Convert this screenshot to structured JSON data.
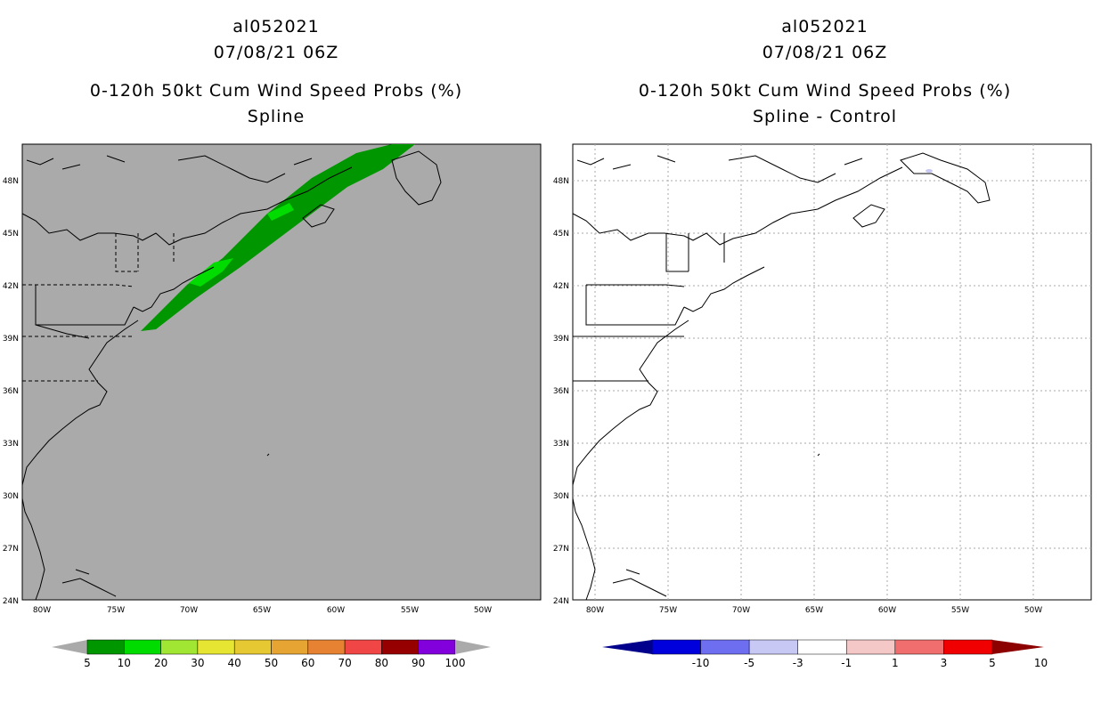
{
  "panels": [
    {
      "id": "left",
      "storm": "al052021",
      "datetime": "07/08/21 06Z",
      "product": "0-120h 50kt Cum Wind Speed Probs (%)",
      "subtitle": "Spline",
      "background": "#aaaaaa",
      "colorbar": {
        "labels": [
          "5",
          "10",
          "20",
          "30",
          "40",
          "50",
          "60",
          "70",
          "80",
          "90",
          "100"
        ],
        "colors": [
          "#009600",
          "#00dc00",
          "#a0e632",
          "#e6e632",
          "#e6c832",
          "#e6a532",
          "#e68232",
          "#f04646",
          "#960000",
          "#8200dc"
        ],
        "end_color": "#aaaaaa"
      }
    },
    {
      "id": "right",
      "storm": "al052021",
      "datetime": "07/08/21 06Z",
      "product": "0-120h 50kt Cum Wind Speed Probs (%)",
      "subtitle": "Spline - Control",
      "background": "#ffffff",
      "colorbar": {
        "labels": [
          "-10",
          "-5",
          "-3",
          "-1",
          "1",
          "3",
          "5",
          "10"
        ],
        "colors": [
          "#0000dc",
          "#6e6ef0",
          "#c8c8f5",
          "#ffffff",
          "#f5c8c8",
          "#f06e6e",
          "#f00000"
        ],
        "end_left": "#00008c",
        "end_right": "#8c0000"
      }
    }
  ],
  "axes": {
    "lat_labels": [
      "48N",
      "45N",
      "42N",
      "39N",
      "36N",
      "33N",
      "30N",
      "27N",
      "24N"
    ],
    "lon_labels": [
      "80W",
      "75W",
      "70W",
      "65W",
      "60W",
      "55W",
      "50W"
    ]
  }
}
